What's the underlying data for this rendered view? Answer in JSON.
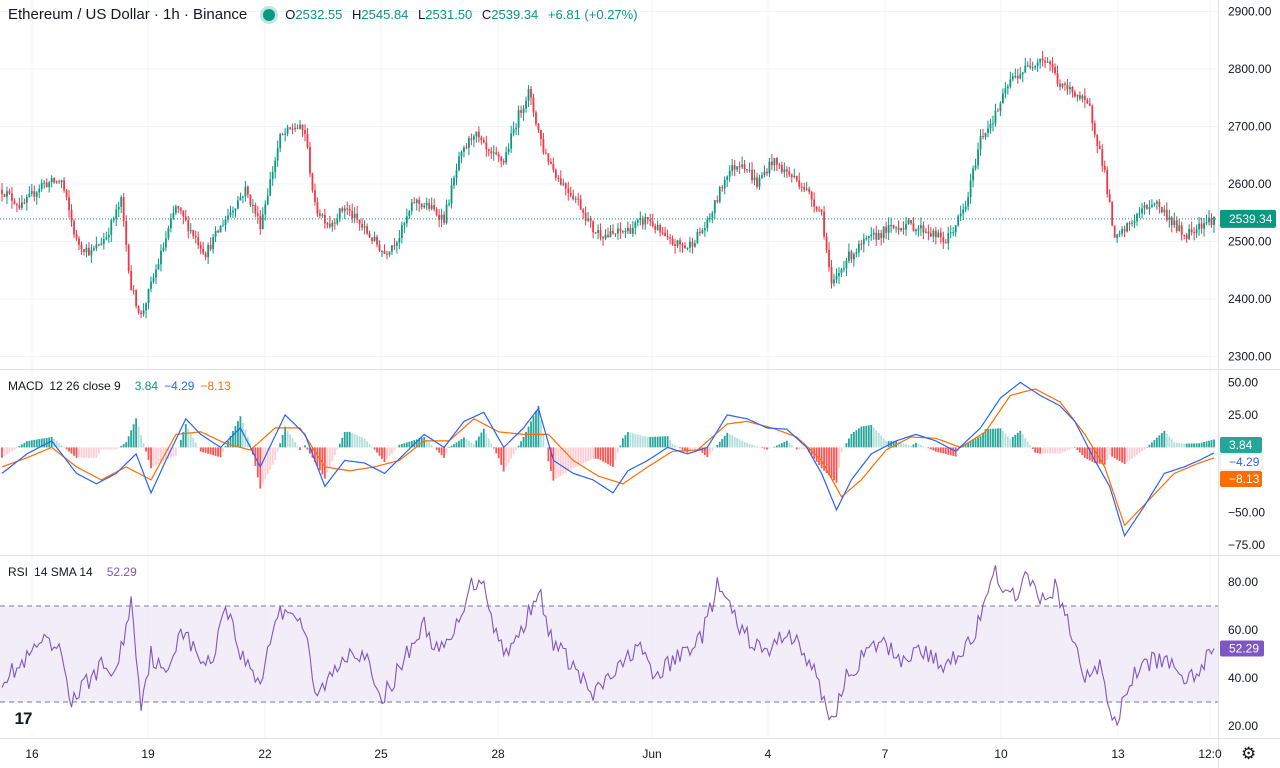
{
  "header": {
    "symbol": "Ethereum / US Dollar · 1h · Binance",
    "o_label": "O",
    "o_value": "2532.55",
    "h_label": "H",
    "h_value": "2545.84",
    "l_label": "L",
    "l_value": "2531.50",
    "c_label": "C",
    "c_value": "2539.34",
    "change": "+6.81 (+0.27%)"
  },
  "macd_legend": {
    "name": "MACD",
    "params": "12 26 close 9",
    "hist": "3.84",
    "macd": "−4.29",
    "signal": "−8.13"
  },
  "rsi_legend": {
    "name": "RSI",
    "params": "14 SMA 14",
    "value": "52.29"
  },
  "colors": {
    "up": "#089981",
    "down": "#f23645",
    "macd": "#2962ff",
    "signal": "#ff6d00",
    "rsi": "#7e57c2",
    "rsi_band": "#ede7f6"
  },
  "chart_data": [
    {
      "type": "candlestick",
      "title": "Ethereum / US Dollar · 1h · Binance",
      "x_labels": [
        "16",
        "19",
        "22",
        "25",
        "28",
        "Jun",
        "4",
        "7",
        "10",
        "13",
        "12:0"
      ],
      "yticks": [
        "2900.00",
        "2800.00",
        "2700.00",
        "2600.00",
        "2500.00",
        "2400.00",
        "2300.00"
      ],
      "ylim": [
        2280,
        2920
      ],
      "last_price": "2539.34",
      "close_approx": [
        [
          0,
          2590
        ],
        [
          8,
          2560
        ],
        [
          16,
          2600
        ],
        [
          24,
          2605
        ],
        [
          30,
          2500
        ],
        [
          36,
          2480
        ],
        [
          42,
          2510
        ],
        [
          48,
          2570
        ],
        [
          52,
          2420
        ],
        [
          56,
          2370
        ],
        [
          62,
          2450
        ],
        [
          70,
          2560
        ],
        [
          76,
          2520
        ],
        [
          82,
          2480
        ],
        [
          90,
          2540
        ],
        [
          98,
          2590
        ],
        [
          104,
          2530
        ],
        [
          112,
          2680
        ],
        [
          118,
          2700
        ],
        [
          122,
          2690
        ],
        [
          126,
          2560
        ],
        [
          132,
          2530
        ],
        [
          138,
          2560
        ],
        [
          146,
          2520
        ],
        [
          154,
          2480
        ],
        [
          160,
          2510
        ],
        [
          166,
          2570
        ],
        [
          172,
          2560
        ],
        [
          178,
          2540
        ],
        [
          184,
          2640
        ],
        [
          190,
          2690
        ],
        [
          196,
          2650
        ],
        [
          202,
          2640
        ],
        [
          208,
          2720
        ],
        [
          212,
          2760
        ],
        [
          218,
          2660
        ],
        [
          224,
          2610
        ],
        [
          232,
          2570
        ],
        [
          238,
          2520
        ],
        [
          244,
          2510
        ],
        [
          252,
          2520
        ],
        [
          260,
          2540
        ],
        [
          268,
          2500
        ],
        [
          276,
          2490
        ],
        [
          284,
          2530
        ],
        [
          292,
          2620
        ],
        [
          298,
          2640
        ],
        [
          304,
          2600
        ],
        [
          310,
          2640
        ],
        [
          316,
          2620
        ],
        [
          322,
          2600
        ],
        [
          330,
          2550
        ],
        [
          334,
          2420
        ],
        [
          340,
          2470
        ],
        [
          348,
          2500
        ],
        [
          356,
          2520
        ],
        [
          364,
          2530
        ],
        [
          372,
          2520
        ],
        [
          380,
          2500
        ],
        [
          388,
          2560
        ],
        [
          394,
          2680
        ],
        [
          400,
          2720
        ],
        [
          406,
          2780
        ],
        [
          412,
          2800
        ],
        [
          418,
          2820
        ],
        [
          422,
          2810
        ],
        [
          426,
          2770
        ],
        [
          432,
          2760
        ],
        [
          438,
          2730
        ],
        [
          444,
          2620
        ],
        [
          448,
          2500
        ],
        [
          452,
          2520
        ],
        [
          458,
          2550
        ],
        [
          464,
          2570
        ],
        [
          470,
          2540
        ],
        [
          476,
          2510
        ],
        [
          482,
          2530
        ],
        [
          488,
          2539.34
        ]
      ]
    },
    {
      "type": "macd",
      "params": "12 26 close 9",
      "yticks": [
        "50.00",
        "25.00",
        "−50.00",
        "−75.00"
      ],
      "ylim": [
        -82,
        58
      ],
      "hist_value": 3.84,
      "macd_value": -4.29,
      "signal_value": -8.13,
      "macd_approx": [
        [
          0,
          -20
        ],
        [
          10,
          -5
        ],
        [
          20,
          5
        ],
        [
          30,
          -20
        ],
        [
          38,
          -28
        ],
        [
          46,
          -20
        ],
        [
          54,
          -5
        ],
        [
          60,
          -35
        ],
        [
          66,
          -10
        ],
        [
          74,
          22
        ],
        [
          80,
          10
        ],
        [
          88,
          0
        ],
        [
          96,
          15
        ],
        [
          104,
          -15
        ],
        [
          114,
          25
        ],
        [
          122,
          10
        ],
        [
          130,
          -30
        ],
        [
          138,
          -10
        ],
        [
          146,
          -12
        ],
        [
          154,
          -20
        ],
        [
          162,
          -5
        ],
        [
          170,
          10
        ],
        [
          178,
          0
        ],
        [
          186,
          20
        ],
        [
          194,
          27
        ],
        [
          202,
          0
        ],
        [
          210,
          15
        ],
        [
          216,
          30
        ],
        [
          222,
          -10
        ],
        [
          230,
          -20
        ],
        [
          238,
          -25
        ],
        [
          246,
          -35
        ],
        [
          252,
          -18
        ],
        [
          260,
          -10
        ],
        [
          268,
          0
        ],
        [
          276,
          -5
        ],
        [
          284,
          0
        ],
        [
          292,
          25
        ],
        [
          300,
          22
        ],
        [
          308,
          15
        ],
        [
          316,
          14
        ],
        [
          324,
          0
        ],
        [
          330,
          -20
        ],
        [
          336,
          -48
        ],
        [
          342,
          -25
        ],
        [
          350,
          -5
        ],
        [
          360,
          5
        ],
        [
          368,
          10
        ],
        [
          376,
          5
        ],
        [
          384,
          -3
        ],
        [
          394,
          15
        ],
        [
          402,
          38
        ],
        [
          410,
          50
        ],
        [
          418,
          40
        ],
        [
          426,
          32
        ],
        [
          432,
          20
        ],
        [
          440,
          -10
        ],
        [
          446,
          -30
        ],
        [
          452,
          -68
        ],
        [
          460,
          -45
        ],
        [
          468,
          -20
        ],
        [
          476,
          -15
        ],
        [
          482,
          -10
        ],
        [
          488,
          -4.29
        ]
      ],
      "signal_approx": [
        [
          0,
          -15
        ],
        [
          10,
          -8
        ],
        [
          20,
          0
        ],
        [
          30,
          -15
        ],
        [
          40,
          -25
        ],
        [
          50,
          -15
        ],
        [
          60,
          -25
        ],
        [
          70,
          10
        ],
        [
          80,
          12
        ],
        [
          90,
          3
        ],
        [
          100,
          -2
        ],
        [
          110,
          15
        ],
        [
          120,
          15
        ],
        [
          130,
          -15
        ],
        [
          140,
          -18
        ],
        [
          150,
          -15
        ],
        [
          160,
          -10
        ],
        [
          170,
          5
        ],
        [
          180,
          5
        ],
        [
          190,
          22
        ],
        [
          200,
          12
        ],
        [
          210,
          10
        ],
        [
          220,
          10
        ],
        [
          230,
          -10
        ],
        [
          240,
          -22
        ],
        [
          250,
          -28
        ],
        [
          260,
          -15
        ],
        [
          270,
          -3
        ],
        [
          280,
          -2
        ],
        [
          292,
          18
        ],
        [
          300,
          20
        ],
        [
          310,
          15
        ],
        [
          320,
          8
        ],
        [
          330,
          -10
        ],
        [
          338,
          -38
        ],
        [
          346,
          -25
        ],
        [
          356,
          -2
        ],
        [
          366,
          8
        ],
        [
          376,
          7
        ],
        [
          386,
          0
        ],
        [
          396,
          12
        ],
        [
          406,
          40
        ],
        [
          416,
          45
        ],
        [
          426,
          35
        ],
        [
          436,
          10
        ],
        [
          444,
          -15
        ],
        [
          452,
          -60
        ],
        [
          462,
          -40
        ],
        [
          472,
          -20
        ],
        [
          482,
          -12
        ],
        [
          488,
          -8.13
        ]
      ]
    },
    {
      "type": "rsi",
      "params": "14 SMA 14",
      "yticks": [
        "80.00",
        "60.00",
        "40.00",
        "20.00"
      ],
      "ylim": [
        15,
        90
      ],
      "bands": [
        30,
        70
      ],
      "value": 52.29,
      "rsi_approx": [
        [
          0,
          40
        ],
        [
          8,
          45
        ],
        [
          16,
          55
        ],
        [
          24,
          50
        ],
        [
          28,
          30
        ],
        [
          34,
          38
        ],
        [
          40,
          45
        ],
        [
          46,
          42
        ],
        [
          52,
          72
        ],
        [
          56,
          30
        ],
        [
          60,
          50
        ],
        [
          66,
          40
        ],
        [
          72,
          62
        ],
        [
          78,
          50
        ],
        [
          84,
          45
        ],
        [
          90,
          72
        ],
        [
          96,
          50
        ],
        [
          104,
          38
        ],
        [
          110,
          65
        ],
        [
          116,
          70
        ],
        [
          122,
          60
        ],
        [
          126,
          32
        ],
        [
          132,
          40
        ],
        [
          140,
          52
        ],
        [
          146,
          50
        ],
        [
          152,
          30
        ],
        [
          158,
          40
        ],
        [
          164,
          52
        ],
        [
          170,
          62
        ],
        [
          176,
          50
        ],
        [
          182,
          58
        ],
        [
          188,
          78
        ],
        [
          194,
          82
        ],
        [
          198,
          60
        ],
        [
          204,
          50
        ],
        [
          210,
          62
        ],
        [
          216,
          78
        ],
        [
          220,
          58
        ],
        [
          226,
          50
        ],
        [
          232,
          42
        ],
        [
          238,
          32
        ],
        [
          244,
          40
        ],
        [
          250,
          45
        ],
        [
          256,
          55
        ],
        [
          262,
          40
        ],
        [
          268,
          45
        ],
        [
          276,
          52
        ],
        [
          282,
          58
        ],
        [
          288,
          78
        ],
        [
          292,
          72
        ],
        [
          296,
          62
        ],
        [
          302,
          55
        ],
        [
          308,
          50
        ],
        [
          316,
          60
        ],
        [
          322,
          52
        ],
        [
          328,
          40
        ],
        [
          334,
          22
        ],
        [
          340,
          40
        ],
        [
          346,
          48
        ],
        [
          354,
          55
        ],
        [
          362,
          48
        ],
        [
          370,
          52
        ],
        [
          378,
          45
        ],
        [
          384,
          50
        ],
        [
          390,
          55
        ],
        [
          396,
          70
        ],
        [
          400,
          85
        ],
        [
          406,
          72
        ],
        [
          412,
          82
        ],
        [
          418,
          72
        ],
        [
          424,
          78
        ],
        [
          430,
          60
        ],
        [
          436,
          40
        ],
        [
          442,
          45
        ],
        [
          448,
          20
        ],
        [
          454,
          38
        ],
        [
          460,
          46
        ],
        [
          468,
          48
        ],
        [
          474,
          40
        ],
        [
          480,
          42
        ],
        [
          486,
          50
        ],
        [
          488,
          52.29
        ]
      ]
    }
  ]
}
